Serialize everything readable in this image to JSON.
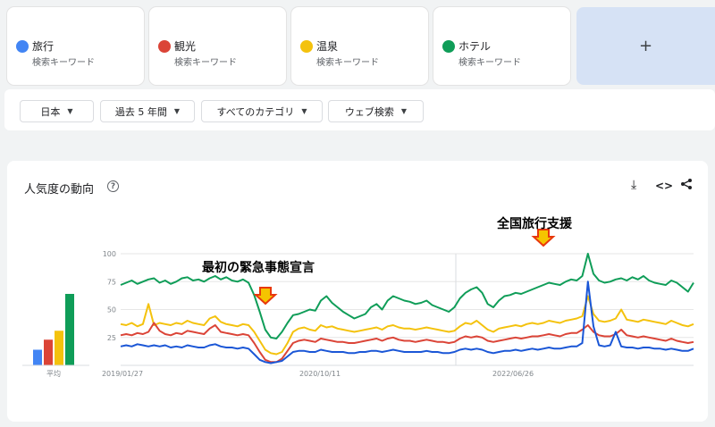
{
  "terms": [
    {
      "name": "旅行",
      "sub": "検索キーワード",
      "color": "#4285f4"
    },
    {
      "name": "観光",
      "sub": "検索キーワード",
      "color": "#db4437"
    },
    {
      "name": "温泉",
      "sub": "検索キーワード",
      "color": "#f4c20d"
    },
    {
      "name": "ホテル",
      "sub": "検索キーワード",
      "color": "#0f9d58"
    }
  ],
  "add_label": "+",
  "filters": [
    {
      "label": "日本"
    },
    {
      "label": "過去 5 年間"
    },
    {
      "label": "すべてのカテゴリ"
    },
    {
      "label": "ウェブ検索"
    }
  ],
  "panel": {
    "title": "人気度の動向",
    "help_icon": "help-icon",
    "tool_icons": [
      "download-icon",
      "embed-code-icon",
      "share-icon"
    ]
  },
  "annotations": {
    "first_emergency": "最初の緊急事態宣言",
    "travel_support": "全国旅行支援"
  },
  "chart_data": {
    "type": "line",
    "ylim": [
      0,
      100
    ],
    "yticks": [
      "100",
      "75",
      "50",
      "25"
    ],
    "xtick_labels": [
      "2019/01/27",
      "2020/10/11",
      "2022/06/26"
    ],
    "x_range": [
      "2019/01/27",
      "2023/12/31"
    ],
    "grid": true,
    "avg_label": "平均",
    "averages": [
      {
        "name": "旅行",
        "value": 14,
        "color": "#4285f4"
      },
      {
        "name": "観光",
        "value": 23,
        "color": "#db4437"
      },
      {
        "name": "温泉",
        "value": 31,
        "color": "#f4c20d"
      },
      {
        "name": "ホテル",
        "value": 64,
        "color": "#0f9d58"
      }
    ],
    "series": [
      {
        "name": "ホテル",
        "color": "#0f9d58",
        "values": [
          72,
          74,
          76,
          73,
          75,
          77,
          78,
          74,
          76,
          73,
          75,
          78,
          79,
          76,
          77,
          75,
          78,
          80,
          77,
          79,
          76,
          75,
          77,
          74,
          63,
          48,
          32,
          25,
          24,
          30,
          38,
          45,
          46,
          48,
          50,
          49,
          58,
          62,
          56,
          52,
          48,
          45,
          42,
          44,
          46,
          52,
          55,
          50,
          58,
          62,
          60,
          58,
          57,
          55,
          56,
          58,
          54,
          52,
          50,
          48,
          52,
          60,
          65,
          68,
          70,
          65,
          55,
          52,
          58,
          62,
          63,
          65,
          64,
          66,
          68,
          70,
          72,
          74,
          73,
          72,
          75,
          77,
          76,
          80,
          100,
          82,
          76,
          74,
          75,
          77,
          78,
          76,
          79,
          77,
          80,
          76,
          74,
          73,
          72,
          76,
          74,
          70,
          66,
          74
        ]
      },
      {
        "name": "温泉",
        "color": "#f4c20d",
        "values": [
          37,
          36,
          38,
          35,
          37,
          55,
          36,
          38,
          37,
          36,
          38,
          37,
          40,
          38,
          37,
          36,
          42,
          44,
          39,
          37,
          36,
          35,
          37,
          36,
          30,
          22,
          14,
          11,
          10,
          12,
          20,
          30,
          33,
          34,
          32,
          31,
          36,
          34,
          35,
          33,
          32,
          31,
          30,
          31,
          32,
          33,
          34,
          32,
          35,
          36,
          34,
          33,
          33,
          32,
          33,
          34,
          33,
          32,
          31,
          30,
          31,
          35,
          38,
          37,
          40,
          36,
          32,
          30,
          33,
          34,
          35,
          36,
          35,
          37,
          38,
          37,
          38,
          40,
          39,
          38,
          40,
          41,
          42,
          44,
          62,
          46,
          40,
          39,
          40,
          42,
          50,
          41,
          40,
          39,
          41,
          40,
          39,
          38,
          37,
          40,
          38,
          36,
          35,
          37
        ]
      },
      {
        "name": "観光",
        "color": "#db4437",
        "values": [
          27,
          28,
          27,
          29,
          28,
          30,
          38,
          31,
          28,
          27,
          29,
          28,
          31,
          30,
          29,
          28,
          33,
          36,
          30,
          29,
          28,
          27,
          28,
          27,
          20,
          12,
          5,
          3,
          3,
          6,
          13,
          20,
          22,
          23,
          22,
          21,
          24,
          23,
          22,
          21,
          21,
          20,
          20,
          21,
          22,
          23,
          24,
          22,
          24,
          25,
          23,
          22,
          22,
          21,
          22,
          23,
          22,
          21,
          21,
          20,
          21,
          24,
          26,
          25,
          26,
          25,
          22,
          21,
          22,
          23,
          24,
          25,
          24,
          25,
          26,
          26,
          27,
          28,
          27,
          26,
          28,
          29,
          29,
          32,
          36,
          30,
          27,
          26,
          26,
          28,
          32,
          27,
          26,
          25,
          26,
          25,
          24,
          23,
          22,
          24,
          22,
          21,
          20,
          21
        ]
      },
      {
        "name": "旅行",
        "color": "#1a56d6",
        "values": [
          17,
          18,
          17,
          19,
          18,
          17,
          18,
          17,
          18,
          16,
          17,
          16,
          18,
          17,
          16,
          16,
          18,
          19,
          17,
          16,
          16,
          15,
          16,
          15,
          10,
          5,
          3,
          2,
          3,
          4,
          8,
          12,
          13,
          13,
          12,
          12,
          14,
          13,
          12,
          12,
          12,
          11,
          11,
          12,
          12,
          13,
          13,
          12,
          13,
          14,
          13,
          12,
          12,
          12,
          12,
          13,
          12,
          12,
          11,
          11,
          12,
          14,
          15,
          14,
          15,
          14,
          12,
          11,
          12,
          13,
          13,
          14,
          13,
          14,
          15,
          14,
          15,
          16,
          15,
          15,
          16,
          17,
          17,
          20,
          75,
          35,
          18,
          17,
          18,
          30,
          17,
          16,
          16,
          15,
          16,
          16,
          15,
          15,
          14,
          15,
          14,
          13,
          13,
          15
        ]
      }
    ]
  }
}
